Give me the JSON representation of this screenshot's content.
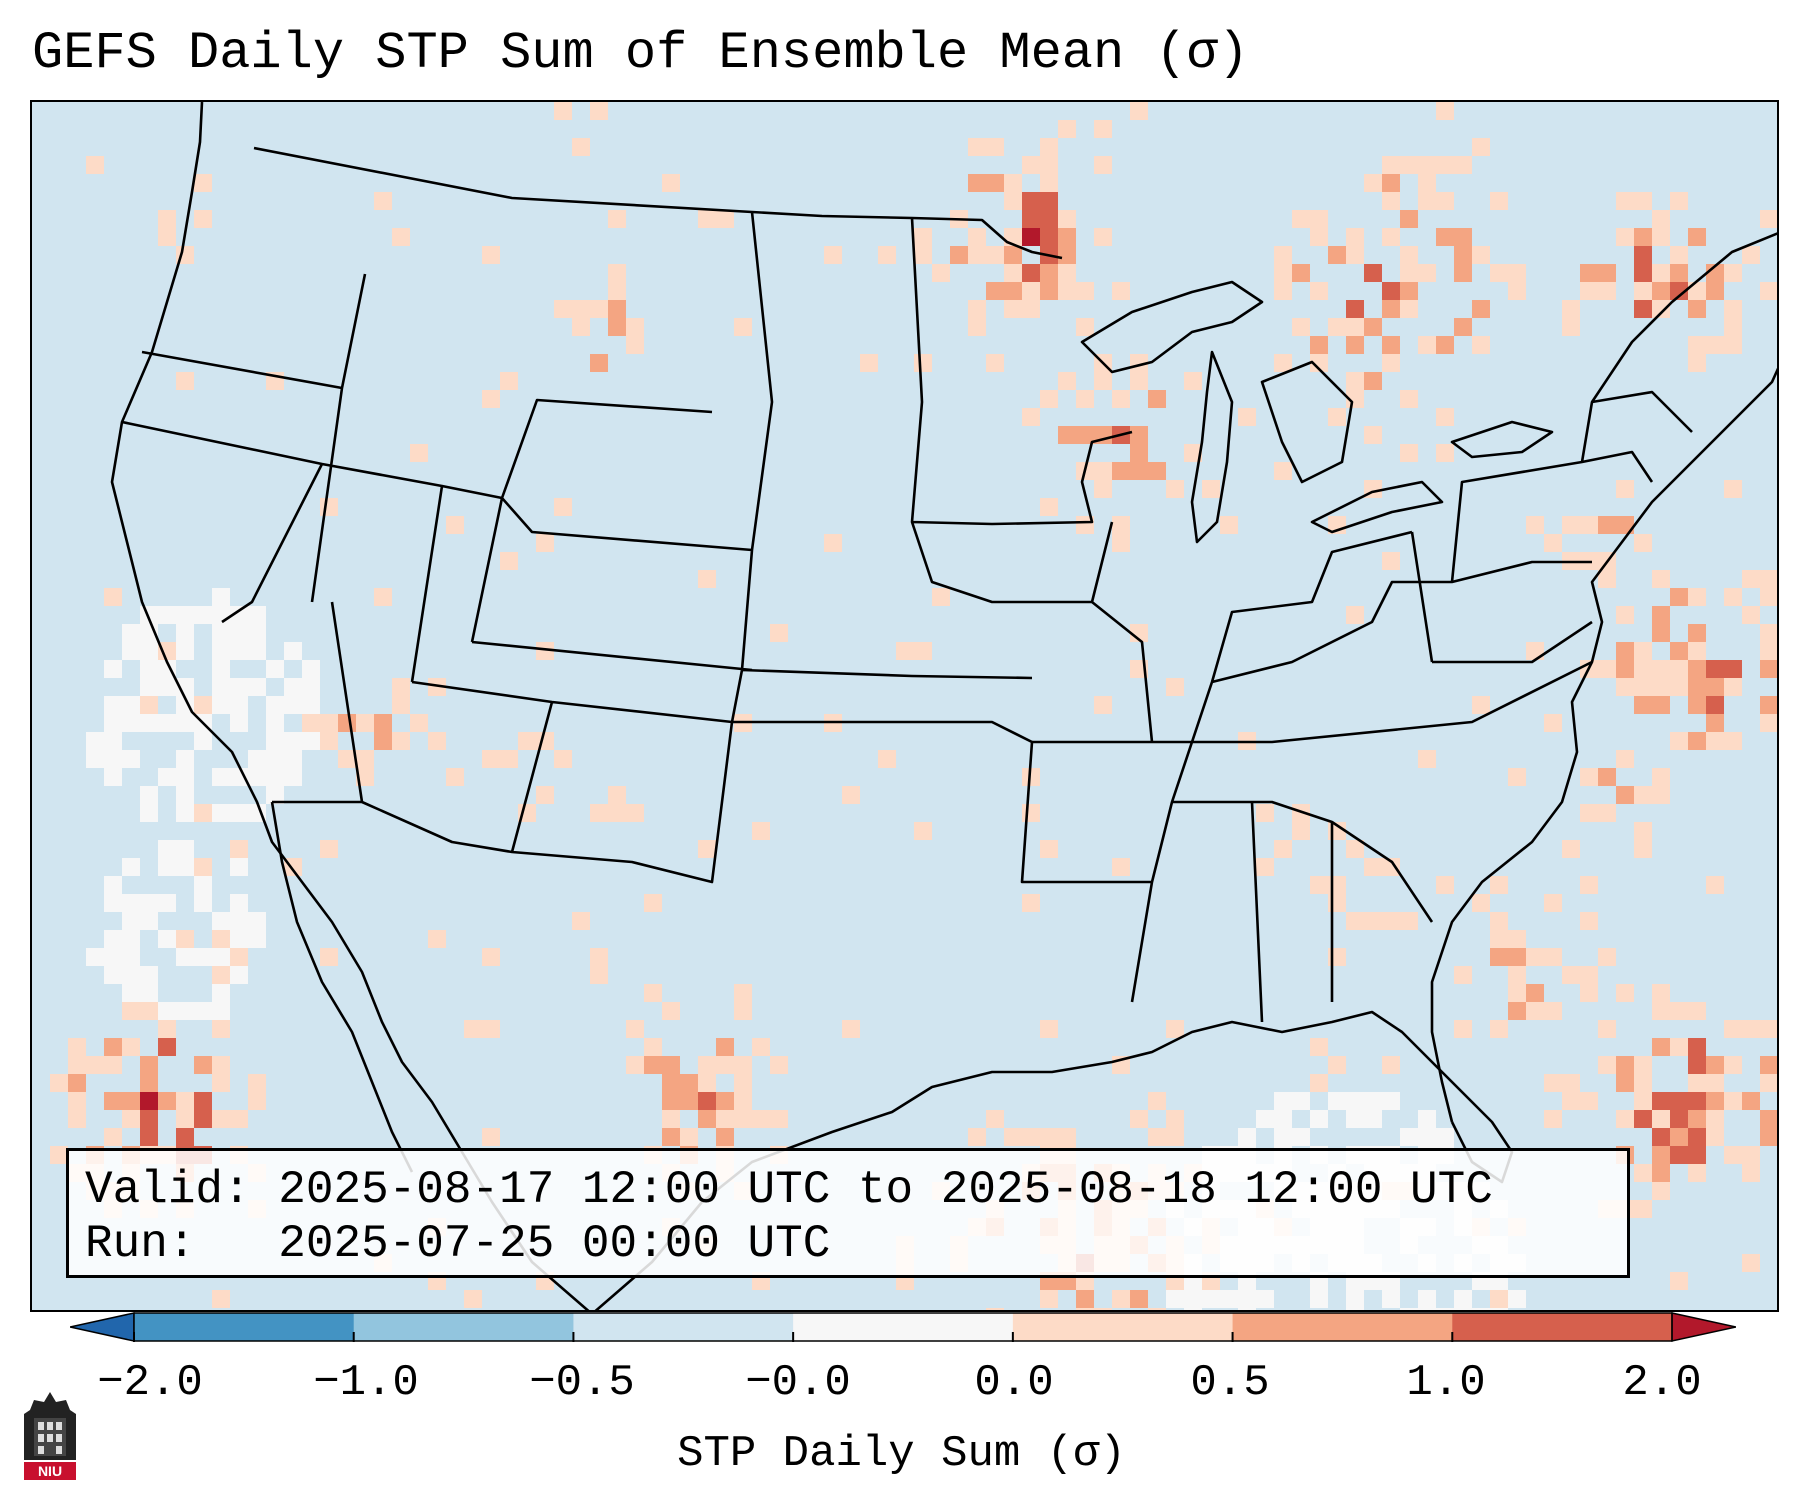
{
  "title": "GEFS Daily STP Sum of Ensemble Mean (σ)",
  "info": {
    "valid_label": "Valid:",
    "valid_text": "2025-08-17 12:00 UTC to 2025-08-18 12:00 UTC",
    "run_label": "Run:",
    "run_text": "2025-07-25 00:00 UTC"
  },
  "colorbar": {
    "title": "STP Daily Sum (σ)",
    "ticks": [
      "−2.0",
      "−1.0",
      "−0.5",
      "−0.0",
      "0.0",
      "0.5",
      "1.0",
      "2.0"
    ],
    "colors": [
      "#4393c3",
      "#92c5de",
      "#d1e5f0",
      "#f7f7f7",
      "#fddbc7",
      "#f4a582",
      "#d6604d"
    ],
    "under_color": "#2166ac",
    "over_color": "#b2182b"
  },
  "map": {
    "background_color": "#d1e5f0",
    "land_color": "#d1e5f0",
    "no_data_color": "#ffffff"
  },
  "logo": {
    "text": "NIU",
    "color": "#c8102e"
  }
}
